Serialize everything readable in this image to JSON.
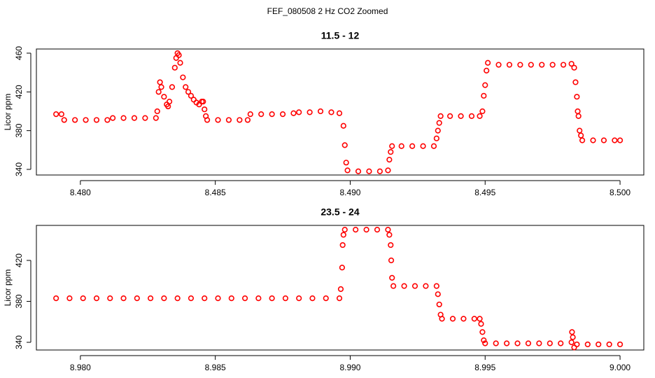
{
  "title": "FEF_080508  2 Hz CO2 Zoomed",
  "chart_data": [
    {
      "type": "scatter",
      "title": "11.5 - 12",
      "y_label": "Licor ppm",
      "color": "#ff0000",
      "xlim": [
        8.47837,
        8.50088
      ],
      "ylim": [
        334.2,
        464.3
      ],
      "xticks": [
        {
          "value": 8.48,
          "label": "8.480"
        },
        8.485,
        {
          "value": 8.49,
          "label": "8.490"
        },
        8.495,
        {
          "value": 8.5,
          "label": "8.500"
        }
      ],
      "yticks": [
        340,
        380,
        420,
        460
      ],
      "x": [
        8.4791,
        8.4793,
        8.4794,
        8.4798,
        8.4802,
        8.4806,
        8.481,
        8.4812,
        8.4816,
        8.482,
        8.4824,
        8.4828,
        8.48285,
        8.4829,
        8.48295,
        8.483,
        8.4831,
        8.4832,
        8.48325,
        8.4833,
        8.4834,
        8.4835,
        8.48355,
        8.4836,
        8.48365,
        8.4837,
        8.4838,
        8.4839,
        8.484,
        8.4841,
        8.4842,
        8.4843,
        8.4844,
        8.4845,
        8.48455,
        8.4846,
        8.48465,
        8.4847,
        8.4851,
        8.4855,
        8.4859,
        8.4862,
        8.4863,
        8.4867,
        8.4871,
        8.4875,
        8.4879,
        8.4881,
        8.4885,
        8.4889,
        8.4893,
        8.4896,
        8.48975,
        8.4898,
        8.48985,
        8.4899,
        8.4903,
        8.4907,
        8.4911,
        8.4914,
        8.49145,
        8.4915,
        8.49155,
        8.4919,
        8.4923,
        8.4927,
        8.4931,
        8.4932,
        8.49325,
        8.4933,
        8.49335,
        8.4937,
        8.4941,
        8.4945,
        8.4948,
        8.4949,
        8.49495,
        8.495,
        8.49505,
        8.4951,
        8.4955,
        8.4959,
        8.4963,
        8.4967,
        8.4971,
        8.4975,
        8.4979,
        8.4982,
        8.4983,
        8.49835,
        8.4984,
        8.49843,
        8.49846,
        8.4985,
        8.49855,
        8.4986,
        8.499,
        8.4994,
        8.4998,
        8.5
      ],
      "values": [
        397,
        397,
        391,
        391,
        391,
        391,
        391,
        393,
        393,
        393,
        393,
        393,
        400,
        420,
        430,
        425,
        415,
        407,
        405,
        410,
        425,
        445,
        455,
        460,
        458,
        450,
        435,
        425,
        420,
        416,
        412,
        409,
        407,
        410,
        410,
        402,
        395,
        391,
        391,
        391,
        391,
        391,
        397,
        397,
        397,
        397,
        398,
        399,
        399,
        400,
        399,
        398,
        385,
        365,
        347,
        339,
        338,
        338,
        338,
        339,
        350,
        358,
        364,
        364,
        364,
        364,
        364,
        372,
        380,
        388,
        395,
        395,
        395,
        395,
        395,
        400,
        416,
        427,
        442,
        450,
        448,
        448,
        448,
        448,
        448,
        448,
        448,
        449,
        445,
        430,
        415,
        400,
        395,
        380,
        375,
        370,
        370,
        370,
        370,
        370
      ]
    },
    {
      "type": "scatter",
      "title": "23.5 - 24",
      "y_label": "Licor ppm",
      "color": "#ff0000",
      "xlim": [
        8.97837,
        9.00088
      ],
      "ylim": [
        332.5,
        454.2
      ],
      "xticks": [
        {
          "value": 8.98,
          "label": "8.980"
        },
        8.985,
        {
          "value": 8.99,
          "label": "8.990"
        },
        8.995,
        {
          "value": 9,
          "label": "9.000"
        }
      ],
      "yticks": [
        340,
        380,
        420
      ],
      "x": [
        8.9791,
        8.9796,
        8.9801,
        8.9806,
        8.9811,
        8.9816,
        8.9821,
        8.9826,
        8.9831,
        8.9836,
        8.9841,
        8.9846,
        8.9851,
        8.9856,
        8.9861,
        8.9866,
        8.9871,
        8.9876,
        8.9881,
        8.9886,
        8.9891,
        8.9896,
        8.98965,
        8.9897,
        8.98972,
        8.98975,
        8.9898,
        8.9902,
        8.9906,
        8.991,
        8.9914,
        8.99145,
        8.9915,
        8.99152,
        8.99155,
        8.9916,
        8.992,
        8.9924,
        8.9928,
        8.9932,
        8.99325,
        8.9933,
        8.99335,
        8.9934,
        8.9938,
        8.9942,
        8.9946,
        8.9948,
        8.99485,
        8.9949,
        8.99495,
        8.995,
        8.9954,
        8.9958,
        8.9962,
        8.9966,
        8.997,
        8.9974,
        8.9978,
        8.9982,
        8.99822,
        8.99825,
        8.9983,
        8.9984,
        8.9988,
        8.9992,
        8.9996,
        9
      ],
      "values": [
        383,
        383,
        383,
        383,
        383,
        383,
        383,
        383,
        383,
        383,
        383,
        383,
        383,
        383,
        383,
        383,
        383,
        383,
        383,
        383,
        383,
        383,
        392,
        413,
        435,
        445,
        450,
        450,
        450,
        450,
        450,
        445,
        435,
        420,
        403,
        395,
        395,
        395,
        395,
        395,
        387,
        377,
        367,
        363,
        363,
        363,
        363,
        363,
        358,
        350,
        342,
        339,
        339,
        339,
        339,
        339,
        339,
        339,
        339,
        340,
        350,
        345,
        335,
        338,
        338,
        338,
        338,
        338
      ]
    }
  ]
}
